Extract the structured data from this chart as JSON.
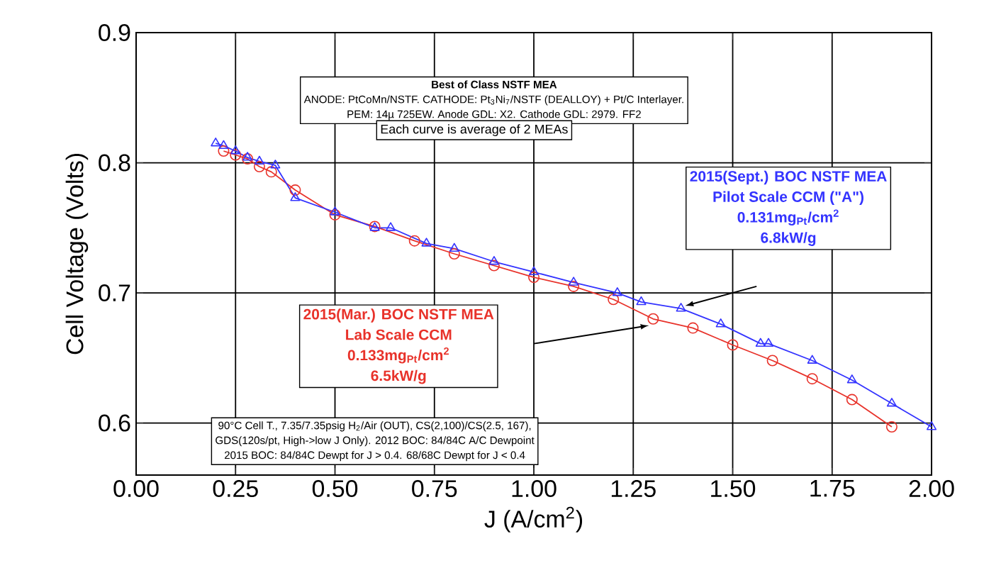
{
  "chart_data": {
    "type": "line",
    "xlabel": "J (A/cm$^{2}$)",
    "ylabel": "Cell Voltage (Volts)",
    "xlim": [
      0,
      2
    ],
    "ylim": [
      0.56,
      0.9
    ],
    "xticks": [
      {
        "value": 0,
        "label": "0.00"
      },
      {
        "value": 0.25,
        "label": "0.25"
      },
      {
        "value": 0.5,
        "label": "0.50"
      },
      {
        "value": 0.75,
        "label": "0.75"
      },
      {
        "value": 1,
        "label": "1.00"
      },
      {
        "value": 1.25,
        "label": "1.25"
      },
      {
        "value": 1.5,
        "label": "1.50"
      },
      {
        "value": 1.75,
        "label": "1.75"
      },
      {
        "value": 2,
        "label": "2.00"
      }
    ],
    "yticks": [
      0.6,
      0.7,
      0.8,
      0.9
    ],
    "grid": true,
    "legend": false,
    "series": [
      {
        "name": "2015(Mar.) BOC NSTF MEA",
        "color": "#e8322a",
        "marker": "circle",
        "x": [
          0.22,
          0.25,
          0.28,
          0.31,
          0.34,
          0.4,
          0.5,
          0.6,
          0.7,
          0.8,
          0.9,
          1.0,
          1.1,
          1.2,
          1.3,
          1.4,
          1.5,
          1.6,
          1.7,
          1.8,
          1.9
        ],
        "values": [
          0.809,
          0.806,
          0.803,
          0.797,
          0.793,
          0.779,
          0.76,
          0.751,
          0.74,
          0.73,
          0.721,
          0.712,
          0.705,
          0.695,
          0.68,
          0.673,
          0.66,
          0.648,
          0.634,
          0.618,
          0.597
        ]
      },
      {
        "name": "2015(Sept.) BOC NSTF MEA",
        "color": "#3333ff",
        "marker": "triangle",
        "x": [
          0.2,
          0.22,
          0.25,
          0.28,
          0.31,
          0.35,
          0.4,
          0.5,
          0.6,
          0.64,
          0.73,
          0.8,
          0.9,
          1.0,
          1.1,
          1.21,
          1.27,
          1.37,
          1.47,
          1.57,
          1.59,
          1.7,
          1.8,
          1.9,
          2.0
        ],
        "values": [
          0.815,
          0.813,
          0.809,
          0.804,
          0.801,
          0.798,
          0.773,
          0.762,
          0.75,
          0.75,
          0.738,
          0.734,
          0.724,
          0.716,
          0.708,
          0.7,
          0.693,
          0.688,
          0.676,
          0.661,
          0.661,
          0.648,
          0.633,
          0.615,
          0.597
        ]
      }
    ],
    "annotations": [
      "Best of Class NSTF MEA",
      "ANODE:  PtCoMn/NSTF. CATHODE:  Pt$_{3}$Ni$_{7}$/NSTF (DEALLOY) + Pt/C Interlayer.",
      "PEM:  14µ 725EW. Anode GDL:  X2.  Cathode GDL:  2979. FF2",
      "Each curve is average of 2 MEAs",
      "Lab Scale CCM",
      "0.133mg$_{Pt}$/cm$^{2}$",
      "6.5kW/g",
      "Pilot Scale CCM (\"A\")",
      "0.131mg$_{Pt}$/cm$^{2}$",
      "6.8kW/g",
      "90°C Cell T., 7.35/7.35psig H$_{2}$/Air (OUT), CS(2,100)/CS(2.5, 167),",
      "GDS(120s/pt, High->low J Only).  2012 BOC:  84/84C A/C Dewpoint",
      "2015 BOC:  84/84C Dewpt for J > 0.4. 68/68C Dewpt for J < 0.4"
    ]
  }
}
